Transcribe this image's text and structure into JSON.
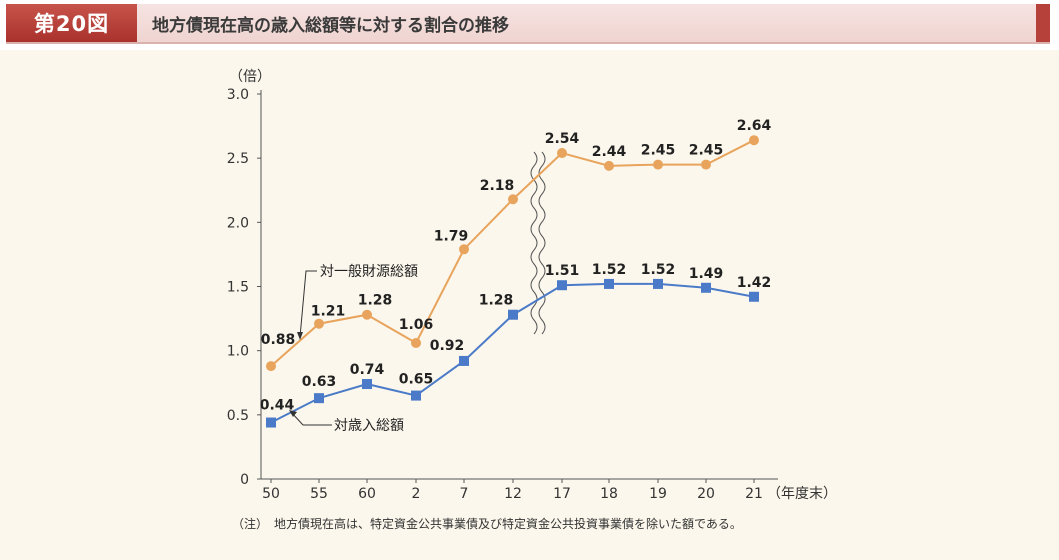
{
  "header": {
    "figure_label": "第20図",
    "title": "地方債現在高の歳入総額等に対する割合の推移"
  },
  "chart_data": {
    "type": "line",
    "categories": [
      "50",
      "55",
      "60",
      "2",
      "7",
      "12",
      "17",
      "18",
      "19",
      "20",
      "21"
    ],
    "ylabel": "（倍）",
    "xlabel": "（年度末）",
    "ylim": [
      0,
      3.0
    ],
    "yticks": [
      "0",
      "0.5",
      "1.0",
      "1.5",
      "2.0",
      "2.5",
      "3.0"
    ],
    "series": [
      {
        "name": "対一般財源総額",
        "values": [
          0.88,
          1.21,
          1.28,
          1.06,
          1.79,
          2.18,
          2.54,
          2.44,
          2.45,
          2.45,
          2.64
        ],
        "labels": [
          "0.88",
          "1.21",
          "1.28",
          "1.06",
          "1.79",
          "2.18",
          "2.54",
          "2.44",
          "2.45",
          "2.45",
          "2.64"
        ],
        "color": "#e8a45c",
        "marker": "circle"
      },
      {
        "name": "対歳入総額",
        "values": [
          0.44,
          0.63,
          0.74,
          0.65,
          0.92,
          1.28,
          1.51,
          1.52,
          1.52,
          1.49,
          1.42
        ],
        "labels": [
          "0.44",
          "0.63",
          "0.74",
          "0.65",
          "0.92",
          "1.28",
          "1.51",
          "1.52",
          "1.52",
          "1.49",
          "1.42"
        ],
        "color": "#4b7bc8",
        "marker": "square"
      }
    ],
    "axis_break": "between 12 and 17",
    "grid": false,
    "legend": "inline callouts"
  },
  "note": "（注）　地方債現在高は、特定資金公共事業債及び特定資金公共投資事業債を除いた額である。"
}
